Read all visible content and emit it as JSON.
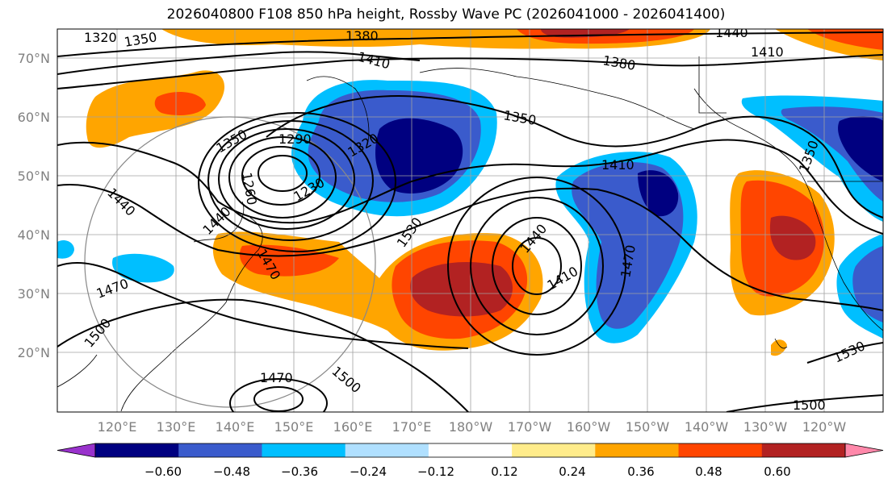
{
  "title": "2026040800 F108 850 hPa height, Rossby Wave PC (2026041000 - 2026041400)",
  "lat_labels": [
    "70°N",
    "60°N",
    "50°N",
    "40°N",
    "30°N",
    "20°N"
  ],
  "lon_labels": [
    "120°E",
    "130°E",
    "140°E",
    "150°E",
    "160°E",
    "170°E",
    "180°W",
    "170°W",
    "160°W",
    "150°W",
    "140°W",
    "130°W",
    "120°W"
  ],
  "contour_labels": [
    "1320",
    "1350",
    "1380",
    "1440",
    "1410",
    "1410",
    "1380",
    "1350",
    "1350",
    "1290",
    "1320",
    "1230",
    "1260",
    "1410",
    "1350",
    "1440",
    "1440",
    "1470",
    "1470",
    "1530",
    "1440",
    "1410",
    "1470",
    "1500",
    "1470",
    "1500",
    "1500",
    "1530"
  ],
  "colorbar": {
    "ticks": [
      "−0.60",
      "−0.48",
      "−0.36",
      "−0.24",
      "−0.12",
      "0.12",
      "0.24",
      "0.36",
      "0.48",
      "0.60"
    ],
    "colors": [
      "#9932cc",
      "#000080",
      "#3a5bcc",
      "#00bfff",
      "#b0e0ff",
      "#ffffff",
      "#ffec8b",
      "#ffa500",
      "#ff4500",
      "#b22222",
      "#ff88aa"
    ]
  }
}
